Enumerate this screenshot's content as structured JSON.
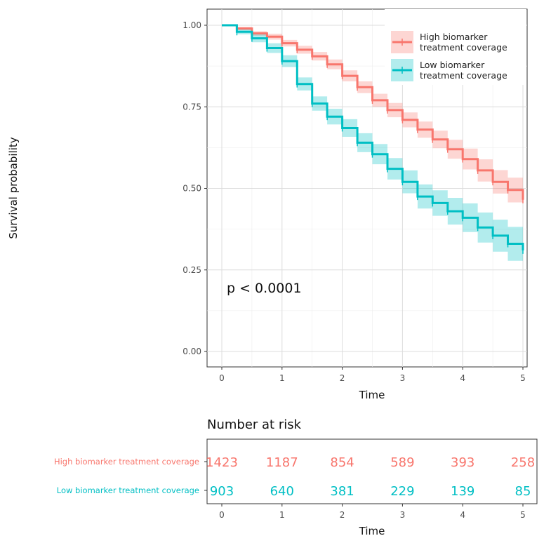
{
  "chart_data": [
    {
      "type": "line",
      "subtype": "kaplan-meier",
      "title": "",
      "xlabel": "Time",
      "ylabel": "Survival probability",
      "xlim": [
        0,
        5
      ],
      "ylim": [
        0,
        1
      ],
      "x_ticks": [
        "0",
        "1",
        "2",
        "3",
        "4",
        "5"
      ],
      "y_ticks": [
        "0.00",
        "0.25",
        "0.50",
        "0.75",
        "1.00"
      ],
      "grid": true,
      "legend_position": "top-right",
      "annotation": "p < 0.0001",
      "series": [
        {
          "name": "High biomarker treatment coverage",
          "legend_lines": [
            "High biomarker",
            "treatment coverage"
          ],
          "color": "#f8766d",
          "x": [
            0,
            0.25,
            0.5,
            0.75,
            1.0,
            1.25,
            1.5,
            1.75,
            2.0,
            2.25,
            2.5,
            2.75,
            3.0,
            3.25,
            3.5,
            3.75,
            4.0,
            4.25,
            4.5,
            4.75,
            5.0
          ],
          "y": [
            1.0,
            0.99,
            0.975,
            0.965,
            0.945,
            0.925,
            0.905,
            0.88,
            0.845,
            0.81,
            0.77,
            0.74,
            0.71,
            0.68,
            0.65,
            0.62,
            0.59,
            0.555,
            0.52,
            0.495,
            0.465
          ],
          "ci_low": [
            1.0,
            0.985,
            0.968,
            0.956,
            0.935,
            0.913,
            0.892,
            0.865,
            0.828,
            0.792,
            0.75,
            0.718,
            0.687,
            0.655,
            0.623,
            0.591,
            0.558,
            0.521,
            0.484,
            0.457,
            0.425
          ],
          "ci_high": [
            1.0,
            0.995,
            0.982,
            0.974,
            0.955,
            0.937,
            0.918,
            0.895,
            0.862,
            0.828,
            0.79,
            0.762,
            0.733,
            0.705,
            0.677,
            0.649,
            0.622,
            0.589,
            0.556,
            0.533,
            0.505
          ]
        },
        {
          "name": "Low biomarker treatment coverage",
          "legend_lines": [
            "Low biomarker",
            "treatment coverage"
          ],
          "color": "#00bfc4",
          "x": [
            0,
            0.25,
            0.5,
            0.75,
            1.0,
            1.25,
            1.5,
            1.75,
            2.0,
            2.25,
            2.5,
            2.75,
            3.0,
            3.25,
            3.5,
            3.75,
            4.0,
            4.25,
            4.5,
            4.75,
            5.0
          ],
          "y": [
            1.0,
            0.98,
            0.96,
            0.93,
            0.89,
            0.82,
            0.76,
            0.72,
            0.685,
            0.64,
            0.605,
            0.56,
            0.52,
            0.475,
            0.455,
            0.43,
            0.41,
            0.38,
            0.355,
            0.33,
            0.31
          ],
          "ci_low": [
            1.0,
            0.972,
            0.948,
            0.915,
            0.872,
            0.8,
            0.738,
            0.696,
            0.658,
            0.611,
            0.574,
            0.527,
            0.485,
            0.438,
            0.416,
            0.389,
            0.366,
            0.334,
            0.306,
            0.278,
            0.255
          ],
          "ci_high": [
            1.0,
            0.988,
            0.972,
            0.945,
            0.908,
            0.84,
            0.782,
            0.744,
            0.712,
            0.669,
            0.636,
            0.593,
            0.555,
            0.512,
            0.494,
            0.471,
            0.454,
            0.426,
            0.404,
            0.382,
            0.365
          ]
        }
      ]
    },
    {
      "type": "table",
      "title": "Number at risk",
      "xlabel": "Time",
      "x_ticks": [
        "0",
        "1",
        "2",
        "3",
        "4",
        "5"
      ],
      "rows": [
        {
          "name": "High biomarker treatment coverage",
          "color": "#f8766d",
          "values": [
            "1423",
            "1187",
            "854",
            "589",
            "393",
            "258"
          ]
        },
        {
          "name": "Low biomarker treatment coverage",
          "color": "#00bfc4",
          "values": [
            "903",
            "640",
            "381",
            "229",
            "139",
            "85"
          ]
        }
      ]
    }
  ]
}
